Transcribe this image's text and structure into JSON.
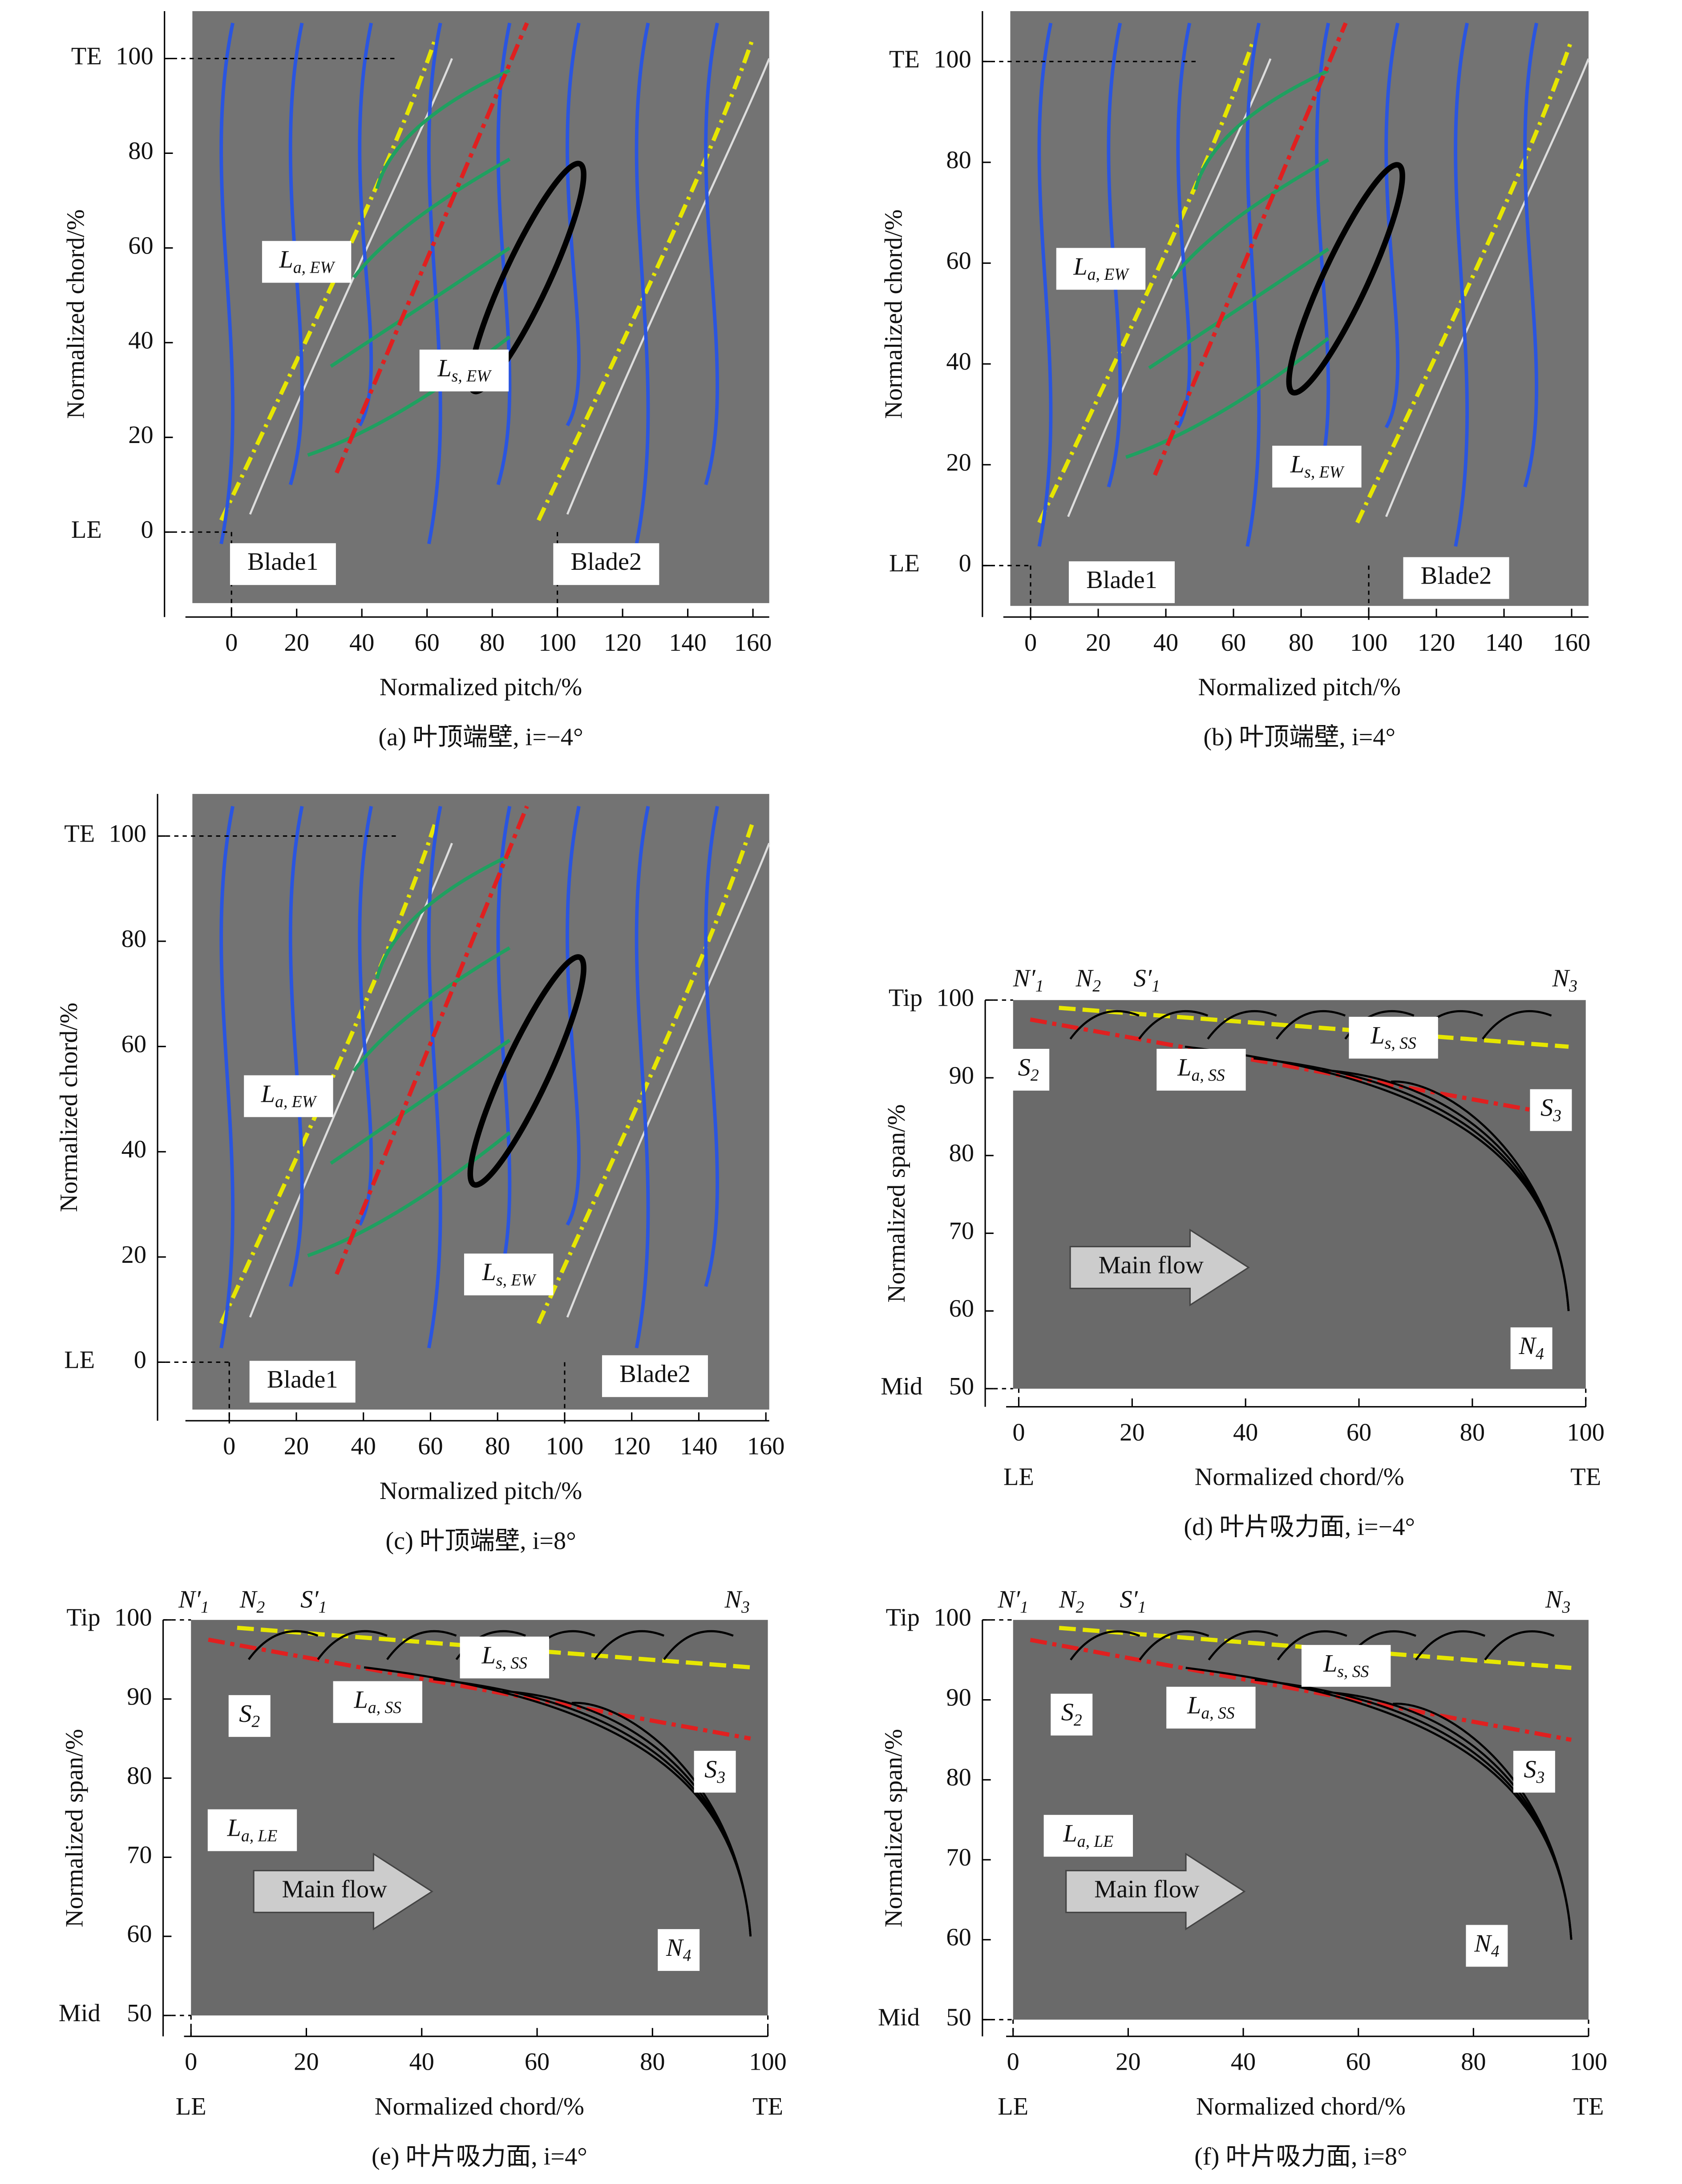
{
  "chart_data": [
    {
      "type": "image",
      "caption": "(a) 叶顶端壁, i=−4°",
      "x_label": "Normalized pitch/%",
      "y_label": "Normalized chord/%",
      "xlim": [
        -12,
        165
      ],
      "ylim": [
        -15,
        110
      ],
      "xticks": [
        0,
        20,
        40,
        60,
        80,
        100,
        120,
        140,
        160
      ],
      "yticks": [
        0,
        20,
        40,
        60,
        80,
        100
      ],
      "y_marks": [
        {
          "value": 100,
          "label": "TE"
        },
        {
          "value": 0,
          "label": "LE"
        }
      ],
      "annotations": [
        {
          "text": "L",
          "sub": "a, EW"
        },
        {
          "text": "L",
          "sub": "s, EW"
        },
        {
          "text": "Blade1"
        },
        {
          "text": "Blade2"
        }
      ]
    },
    {
      "type": "image",
      "caption": "(b) 叶顶端壁, i=4°",
      "x_label": "Normalized pitch/%",
      "y_label": "Normalized chord/%",
      "xlim": [
        -6,
        165
      ],
      "ylim": [
        -8,
        110
      ],
      "xticks": [
        0,
        20,
        40,
        60,
        80,
        100,
        120,
        140,
        160
      ],
      "yticks": [
        0,
        20,
        40,
        60,
        80,
        100
      ],
      "y_marks": [
        {
          "value": 100,
          "label": "TE"
        },
        {
          "value": 0,
          "label": "LE"
        }
      ],
      "annotations": [
        {
          "text": "L",
          "sub": "a, EW"
        },
        {
          "text": "L",
          "sub": "s, EW"
        },
        {
          "text": "Blade1"
        },
        {
          "text": "Blade2"
        }
      ]
    },
    {
      "type": "image",
      "caption": "(c) 叶顶端壁, i=8°",
      "x_label": "Normalized pitch/%",
      "y_label": "Normalized chord/%",
      "xlim": [
        -11,
        161
      ],
      "ylim": [
        -9,
        108
      ],
      "xticks": [
        0,
        20,
        40,
        60,
        80,
        100,
        120,
        140,
        160
      ],
      "yticks": [
        0,
        20,
        40,
        60,
        80,
        100
      ],
      "y_marks": [
        {
          "value": 100,
          "label": "TE"
        },
        {
          "value": 0,
          "label": "LE"
        }
      ],
      "annotations": [
        {
          "text": "L",
          "sub": "a, EW"
        },
        {
          "text": "L",
          "sub": "s, EW"
        },
        {
          "text": "Blade1"
        },
        {
          "text": "Blade2"
        }
      ]
    },
    {
      "type": "image",
      "caption": "(d) 叶片吸力面, i=−4°",
      "x_label": "Normalized chord/%",
      "y_label": "Normalized span/%",
      "xlim": [
        -1,
        100
      ],
      "ylim": [
        50,
        100
      ],
      "xticks": [
        0,
        20,
        40,
        60,
        80,
        100
      ],
      "yticks": [
        50,
        60,
        70,
        80,
        90,
        100
      ],
      "y_marks": [
        {
          "value": 100,
          "label": "Tip"
        },
        {
          "value": 50,
          "label": "Mid"
        }
      ],
      "x_marks": [
        {
          "value": 0,
          "label": "LE"
        },
        {
          "value": 100,
          "label": "TE"
        }
      ],
      "annotations": [
        {
          "text": "N′",
          "sub": "1"
        },
        {
          "text": "N",
          "sub": "2"
        },
        {
          "text": "S′",
          "sub": "1"
        },
        {
          "text": "N",
          "sub": "3"
        },
        {
          "text": "L",
          "sub": "s, SS"
        },
        {
          "text": "L",
          "sub": "a, SS"
        },
        {
          "text": "S",
          "sub": "2"
        },
        {
          "text": "S",
          "sub": "3"
        },
        {
          "text": "Main flow"
        },
        {
          "text": "N",
          "sub": "4"
        }
      ]
    },
    {
      "type": "image",
      "caption": "(e) 叶片吸力面, i=4°",
      "x_label": "Normalized chord/%",
      "y_label": "Normalized span/%",
      "xlim": [
        0,
        100
      ],
      "ylim": [
        50,
        100
      ],
      "xticks": [
        0,
        20,
        40,
        60,
        80,
        100
      ],
      "yticks": [
        50,
        60,
        70,
        80,
        90,
        100
      ],
      "y_marks": [
        {
          "value": 100,
          "label": "Tip"
        },
        {
          "value": 50,
          "label": "Mid"
        }
      ],
      "x_marks": [
        {
          "value": 0,
          "label": "LE"
        },
        {
          "value": 100,
          "label": "TE"
        }
      ],
      "annotations": [
        {
          "text": "N′",
          "sub": "1"
        },
        {
          "text": "N",
          "sub": "2"
        },
        {
          "text": "S′",
          "sub": "1"
        },
        {
          "text": "N",
          "sub": "3"
        },
        {
          "text": "L",
          "sub": "s, SS"
        },
        {
          "text": "L",
          "sub": "a, SS"
        },
        {
          "text": "S",
          "sub": "2"
        },
        {
          "text": "S",
          "sub": "3"
        },
        {
          "text": "L",
          "sub": "a, LE"
        },
        {
          "text": "Main flow"
        },
        {
          "text": "N",
          "sub": "4"
        }
      ]
    },
    {
      "type": "image",
      "caption": "(f) 叶片吸力面, i=8°",
      "x_label": "Normalized chord/%",
      "y_label": "Normalized span/%",
      "xlim": [
        0,
        100
      ],
      "ylim": [
        50,
        100
      ],
      "xticks": [
        0,
        20,
        40,
        60,
        80,
        100
      ],
      "yticks": [
        50,
        60,
        70,
        80,
        90,
        100
      ],
      "y_marks": [
        {
          "value": 100,
          "label": "Tip"
        },
        {
          "value": 50,
          "label": "Mid"
        }
      ],
      "x_marks": [
        {
          "value": 0,
          "label": "LE"
        },
        {
          "value": 100,
          "label": "TE"
        }
      ],
      "annotations": [
        {
          "text": "N′",
          "sub": "1"
        },
        {
          "text": "N",
          "sub": "2"
        },
        {
          "text": "S′",
          "sub": "1"
        },
        {
          "text": "N",
          "sub": "3"
        },
        {
          "text": "L",
          "sub": "s, SS"
        },
        {
          "text": "L",
          "sub": "a, SS"
        },
        {
          "text": "S",
          "sub": "2"
        },
        {
          "text": "S",
          "sub": "3"
        },
        {
          "text": "L",
          "sub": "a, LE"
        },
        {
          "text": "Main flow"
        },
        {
          "text": "N",
          "sub": "4"
        }
      ]
    }
  ]
}
